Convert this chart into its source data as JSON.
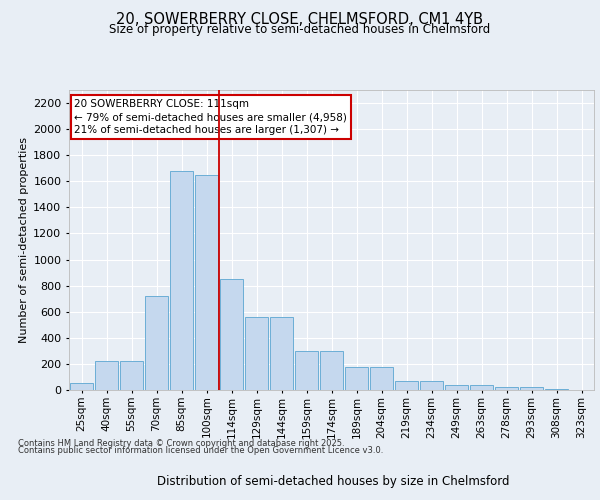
{
  "title_line1": "20, SOWERBERRY CLOSE, CHELMSFORD, CM1 4YB",
  "title_line2": "Size of property relative to semi-detached houses in Chelmsford",
  "xlabel": "Distribution of semi-detached houses by size in Chelmsford",
  "ylabel": "Number of semi-detached properties",
  "categories": [
    "25sqm",
    "40sqm",
    "55sqm",
    "70sqm",
    "85sqm",
    "100sqm",
    "114sqm",
    "129sqm",
    "144sqm",
    "159sqm",
    "174sqm",
    "189sqm",
    "204sqm",
    "219sqm",
    "234sqm",
    "249sqm",
    "263sqm",
    "278sqm",
    "293sqm",
    "308sqm",
    "323sqm"
  ],
  "values": [
    50,
    220,
    220,
    720,
    1680,
    1650,
    850,
    560,
    560,
    300,
    300,
    180,
    180,
    70,
    70,
    35,
    35,
    20,
    20,
    10,
    0
  ],
  "bar_color": "#c5d8ee",
  "bar_edge_color": "#6baed6",
  "vline_pos": 5.5,
  "annotation_text": "20 SOWERBERRY CLOSE: 111sqm\n← 79% of semi-detached houses are smaller (4,958)\n21% of semi-detached houses are larger (1,307) →",
  "ylim": [
    0,
    2300
  ],
  "yticks": [
    0,
    200,
    400,
    600,
    800,
    1000,
    1200,
    1400,
    1600,
    1800,
    2000,
    2200
  ],
  "footer_line1": "Contains HM Land Registry data © Crown copyright and database right 2025.",
  "footer_line2": "Contains public sector information licensed under the Open Government Licence v3.0.",
  "background_color": "#e8eef5",
  "plot_bg_color": "#e8eef5",
  "grid_color": "#ffffff",
  "vline_color": "#cc0000",
  "box_edge_color": "#cc0000",
  "box_face_color": "#ffffff"
}
